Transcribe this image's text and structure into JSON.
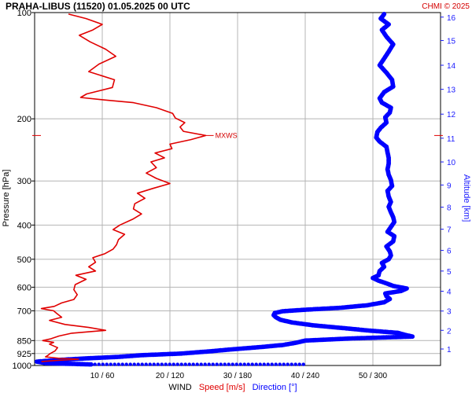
{
  "header": {
    "title": "PRAHA-LIBUS (11520)    01.05.2025 00 UTC",
    "credit": "CHMI © 2025"
  },
  "colors": {
    "speed": "#e00000",
    "direction": "#0000ff",
    "grid": "#b4b4b4",
    "altitude_axis": "#1a1aff"
  },
  "chart_data": {
    "type": "line",
    "title": "PRAHA-LIBUS (11520)    01.05.2025 00 UTC",
    "ylabel": "Pressure [hPa]",
    "y2label": "Altitude [km]",
    "xlabel_parts": [
      "WIND",
      "Speed [m/s]",
      "Direction [°]"
    ],
    "y_scale": "log",
    "y_range_hPa": [
      1000,
      100
    ],
    "pressure_ticks": [
      100,
      200,
      300,
      400,
      500,
      600,
      700,
      850,
      925,
      1000
    ],
    "altitude_ticks": [
      {
        "km": 1,
        "hPa": 898
      },
      {
        "km": 2,
        "hPa": 795
      },
      {
        "km": 3,
        "hPa": 701
      },
      {
        "km": 4,
        "hPa": 616
      },
      {
        "km": 5,
        "hPa": 540
      },
      {
        "km": 6,
        "hPa": 472
      },
      {
        "km": 7,
        "hPa": 411
      },
      {
        "km": 8,
        "hPa": 356
      },
      {
        "km": 9,
        "hPa": 308
      },
      {
        "km": 10,
        "hPa": 265
      },
      {
        "km": 11,
        "hPa": 227
      },
      {
        "km": 12,
        "hPa": 194
      },
      {
        "km": 13,
        "hPa": 165
      },
      {
        "km": 14,
        "hPa": 141
      },
      {
        "km": 15,
        "hPa": 120
      },
      {
        "km": 16,
        "hPa": 103
      }
    ],
    "x_ticks": [
      {
        "speed": 10,
        "dir": 60,
        "label": "10 / 60"
      },
      {
        "speed": 20,
        "dir": 120,
        "label": "20 / 120"
      },
      {
        "speed": 30,
        "dir": 180,
        "label": "30 / 180"
      },
      {
        "speed": 40,
        "dir": 240,
        "label": "40 / 240"
      },
      {
        "speed": 50,
        "dir": 300,
        "label": "50 / 300"
      }
    ],
    "x_range_speed": [
      0,
      60
    ],
    "x_range_dir": [
      0,
      360
    ],
    "max_wind": {
      "hPa": 223,
      "speed": 25.3,
      "label": "MXWS"
    },
    "series": [
      {
        "name": "Speed [m/s]",
        "unit": "m/s",
        "points": [
          [
            975,
            1.0
          ],
          [
            968,
            3.0
          ],
          [
            960,
            6.5
          ],
          [
            955,
            3.8
          ],
          [
            945,
            1.6
          ],
          [
            935,
            2.0
          ],
          [
            925,
            2.3
          ],
          [
            910,
            3.0
          ],
          [
            890,
            3.4
          ],
          [
            870,
            2.2
          ],
          [
            860,
            2.8
          ],
          [
            850,
            1.2
          ],
          [
            840,
            2.4
          ],
          [
            825,
            3.6
          ],
          [
            810,
            5.5
          ],
          [
            795,
            10.5
          ],
          [
            780,
            8.0
          ],
          [
            765,
            4.5
          ],
          [
            745,
            2.2
          ],
          [
            730,
            4.0
          ],
          [
            715,
            3.4
          ],
          [
            700,
            2.8
          ],
          [
            690,
            1.0
          ],
          [
            680,
            2.9
          ],
          [
            665,
            4.0
          ],
          [
            650,
            5.8
          ],
          [
            630,
            6.3
          ],
          [
            610,
            5.8
          ],
          [
            590,
            6.0
          ],
          [
            570,
            7.6
          ],
          [
            555,
            6.1
          ],
          [
            540,
            9.0
          ],
          [
            525,
            8.0
          ],
          [
            510,
            9.0
          ],
          [
            495,
            8.6
          ],
          [
            482,
            10.4
          ],
          [
            468,
            11.6
          ],
          [
            455,
            12.1
          ],
          [
            440,
            12.4
          ],
          [
            425,
            13.3
          ],
          [
            412,
            11.6
          ],
          [
            400,
            12.6
          ],
          [
            385,
            14.5
          ],
          [
            372,
            15.8
          ],
          [
            360,
            14.6
          ],
          [
            348,
            14.8
          ],
          [
            336,
            16.3
          ],
          [
            325,
            15.2
          ],
          [
            315,
            17.5
          ],
          [
            305,
            20.0
          ],
          [
            295,
            18.0
          ],
          [
            285,
            16.5
          ],
          [
            275,
            18.0
          ],
          [
            265,
            17.2
          ],
          [
            258,
            19.2
          ],
          [
            250,
            17.8
          ],
          [
            243,
            20.3
          ],
          [
            236,
            20.0
          ],
          [
            229,
            23.1
          ],
          [
            223,
            25.3
          ],
          [
            217,
            22.0
          ],
          [
            211,
            21.5
          ],
          [
            205,
            22.2
          ],
          [
            199,
            20.8
          ],
          [
            193,
            20.4
          ],
          [
            186,
            18.0
          ],
          [
            180,
            14.6
          ],
          [
            177,
            10.5
          ],
          [
            174,
            6.8
          ],
          [
            170,
            7.7
          ],
          [
            163,
            11.5
          ],
          [
            155,
            11.8
          ],
          [
            147,
            8.0
          ],
          [
            140,
            9.5
          ],
          [
            133,
            12.0
          ],
          [
            127,
            10.5
          ],
          [
            121,
            8.2
          ],
          [
            116,
            6.6
          ],
          [
            112,
            8.6
          ],
          [
            108,
            10.0
          ],
          [
            104,
            7.6
          ],
          [
            101,
            5.0
          ]
        ]
      },
      {
        "name": "Direction [°]",
        "unit": "deg",
        "points": [
          [
            993,
            50
          ],
          [
            985,
            10
          ],
          [
            975,
            2
          ],
          [
            965,
            20
          ],
          [
            955,
            45
          ],
          [
            945,
            75
          ],
          [
            935,
            95
          ],
          [
            925,
            130
          ],
          [
            912,
            155
          ],
          [
            900,
            175
          ],
          [
            888,
            198
          ],
          [
            875,
            220
          ],
          [
            862,
            232
          ],
          [
            850,
            240
          ],
          [
            838,
            282
          ],
          [
            828,
            335
          ],
          [
            818,
            328
          ],
          [
            808,
            322
          ],
          [
            796,
            296
          ],
          [
            784,
            275
          ],
          [
            770,
            248
          ],
          [
            755,
            228
          ],
          [
            742,
            218
          ],
          [
            730,
            214
          ],
          [
            720,
            212
          ],
          [
            710,
            213
          ],
          [
            702,
            220
          ],
          [
            695,
            240
          ],
          [
            686,
            272
          ],
          [
            675,
            295
          ],
          [
            662,
            310
          ],
          [
            648,
            315
          ],
          [
            636,
            312
          ],
          [
            625,
            311
          ],
          [
            615,
            325
          ],
          [
            605,
            330
          ],
          [
            595,
            318
          ],
          [
            585,
            312
          ],
          [
            575,
            305
          ],
          [
            565,
            300
          ],
          [
            555,
            305
          ],
          [
            540,
            306
          ],
          [
            525,
            310
          ],
          [
            512,
            308
          ],
          [
            500,
            314
          ],
          [
            488,
            316
          ],
          [
            475,
            315
          ],
          [
            460,
            312
          ],
          [
            445,
            318
          ],
          [
            430,
            319
          ],
          [
            418,
            313
          ],
          [
            405,
            316
          ],
          [
            392,
            319
          ],
          [
            380,
            318
          ],
          [
            368,
            316
          ],
          [
            355,
            314
          ],
          [
            344,
            316
          ],
          [
            332,
            314
          ],
          [
            320,
            313
          ],
          [
            310,
            317
          ],
          [
            298,
            316
          ],
          [
            288,
            314
          ],
          [
            278,
            313
          ],
          [
            268,
            314
          ],
          [
            258,
            314
          ],
          [
            249,
            313
          ],
          [
            240,
            312
          ],
          [
            232,
            306
          ],
          [
            226,
            303
          ],
          [
            218,
            304
          ],
          [
            212,
            307
          ],
          [
            205,
            312
          ],
          [
            198,
            311
          ],
          [
            192,
            315
          ],
          [
            186,
            316
          ],
          [
            180,
            308
          ],
          [
            175,
            306
          ],
          [
            168,
            310
          ],
          [
            162,
            318
          ],
          [
            155,
            317
          ],
          [
            148,
            312
          ],
          [
            141,
            306
          ],
          [
            135,
            310
          ],
          [
            129,
            314
          ],
          [
            123,
            318
          ],
          [
            117,
            312
          ],
          [
            112,
            308
          ],
          [
            108,
            314
          ],
          [
            104,
            307
          ],
          [
            101,
            310
          ]
        ]
      }
    ]
  }
}
